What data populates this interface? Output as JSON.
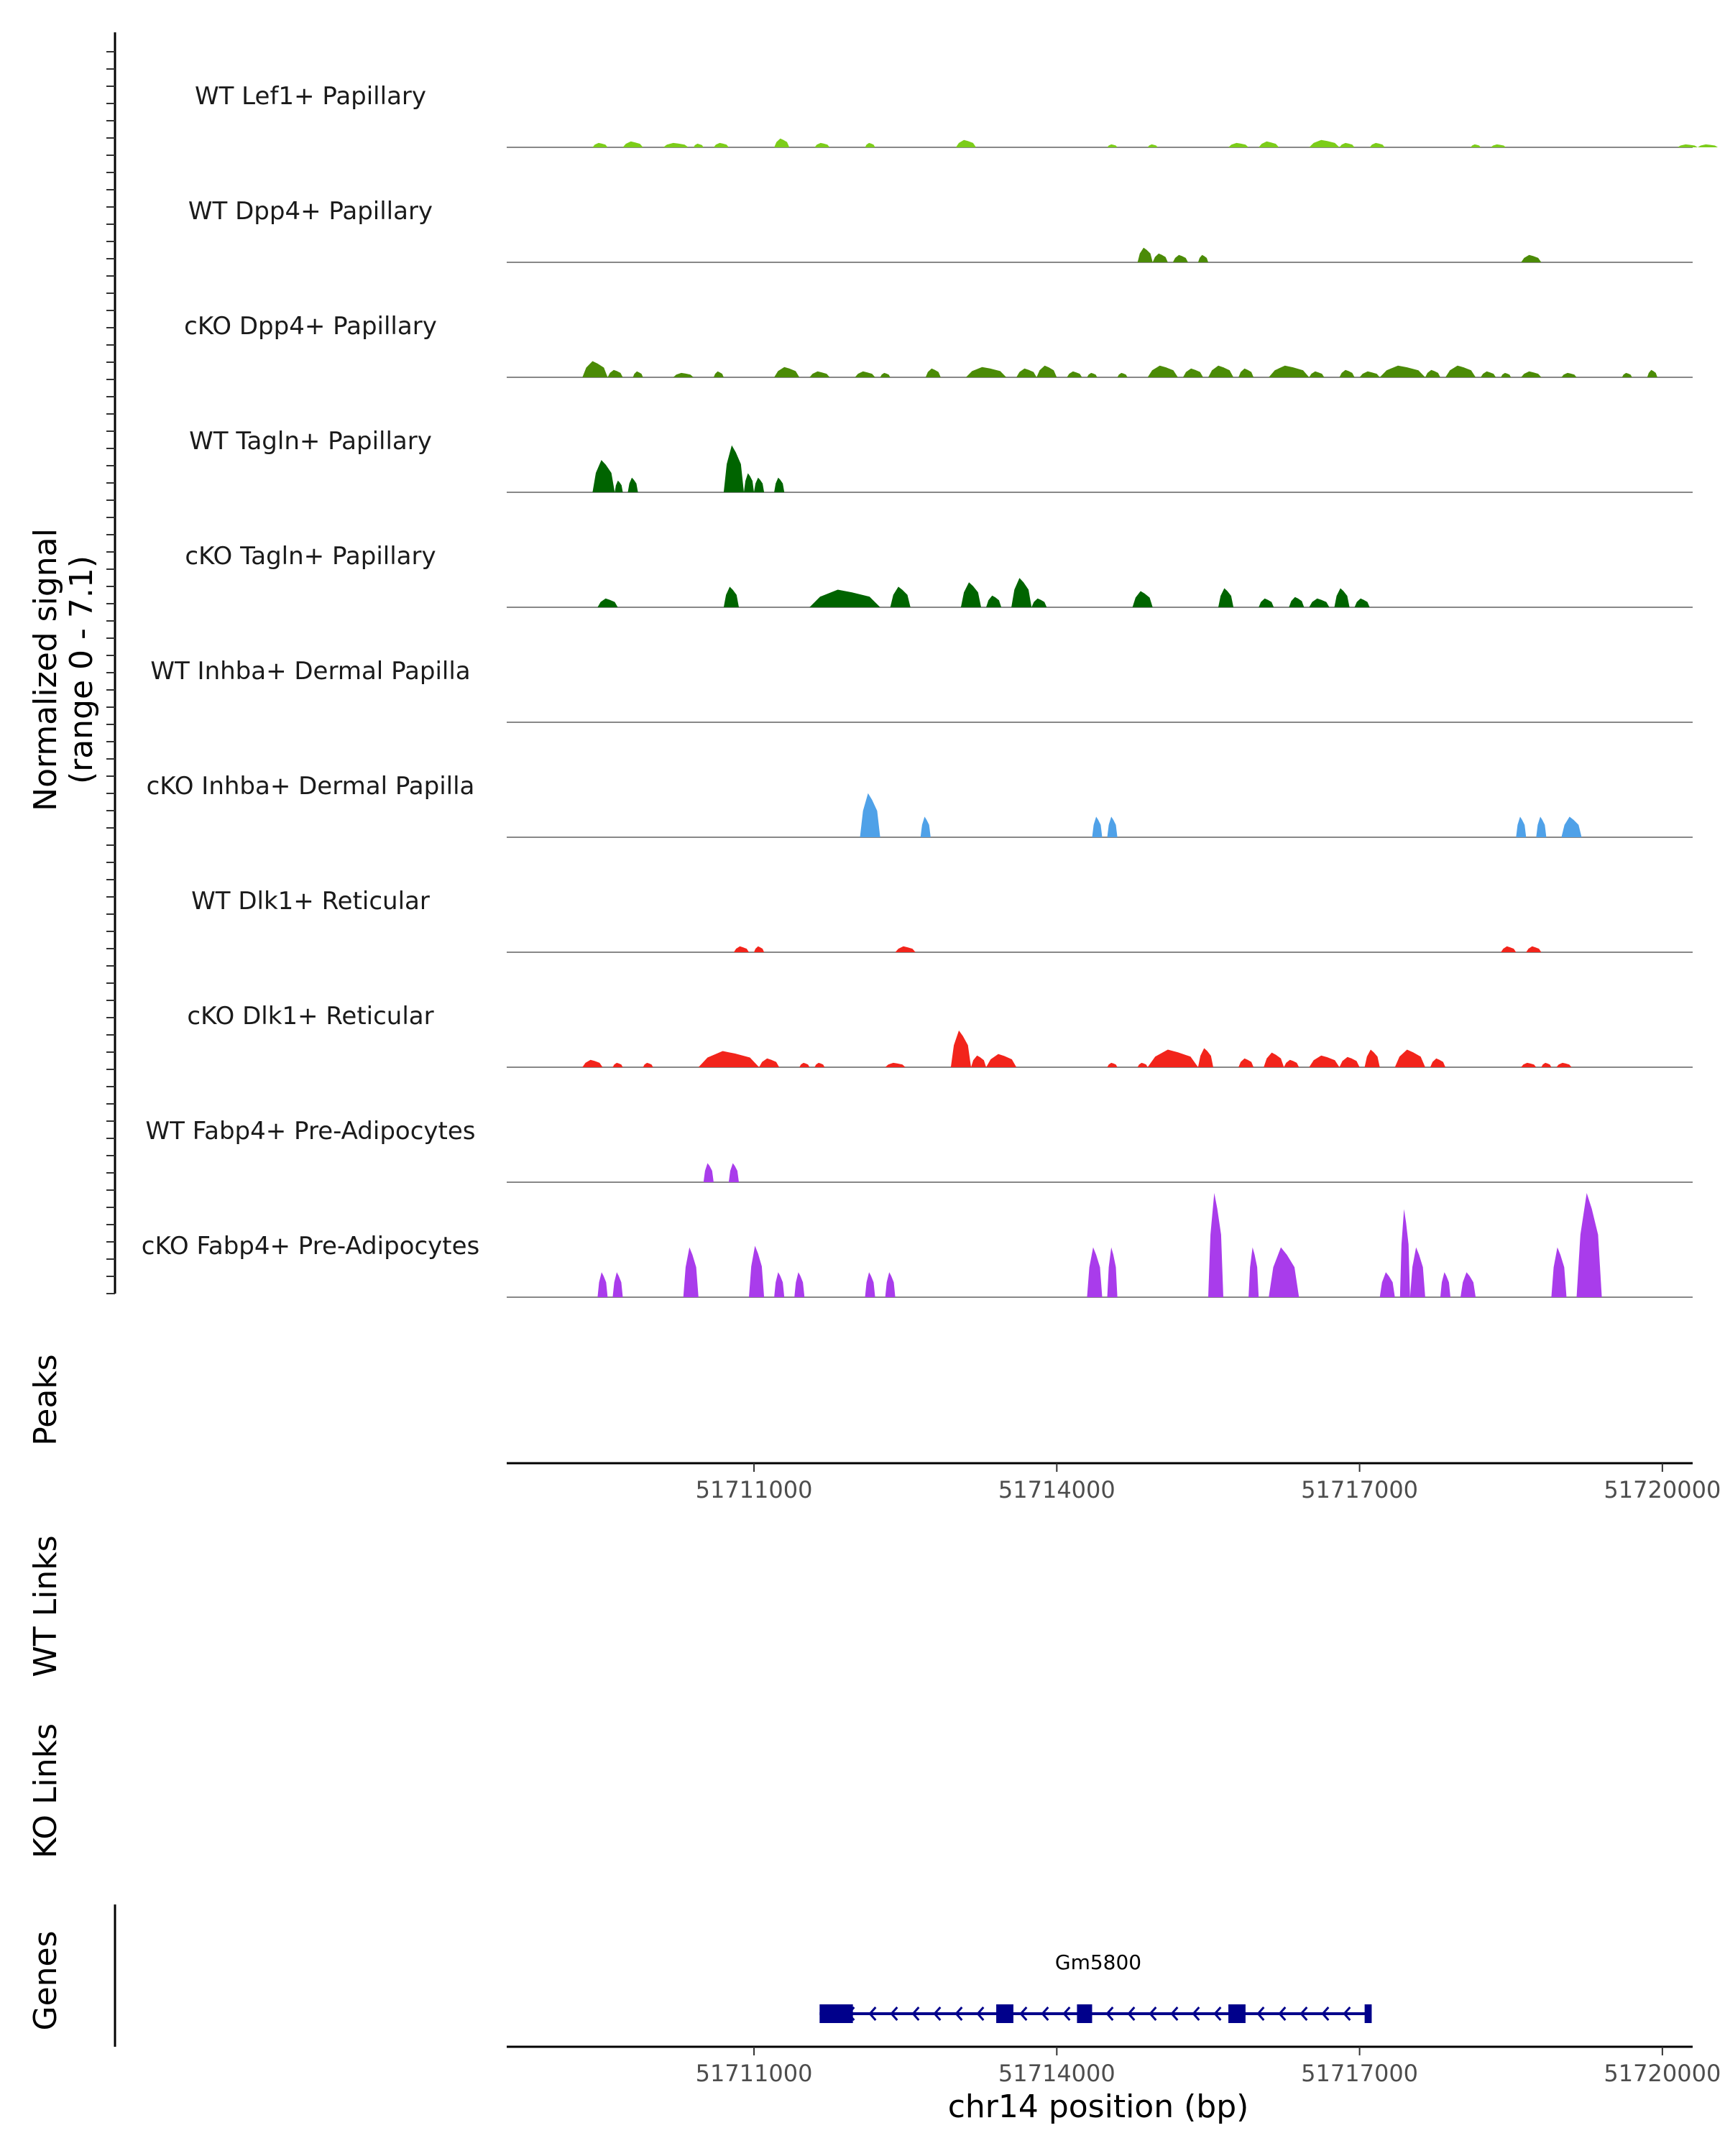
{
  "chart_data": {
    "type": "area",
    "title": "",
    "ylabel": "Normalized signal",
    "ylabel_range": "(range 0 - 7.1)",
    "y_range": [
      0,
      7.1
    ],
    "xlabel": "chr14 position (bp)",
    "xlim": [
      51708550,
      51720300
    ],
    "x_ticks": [
      51711000,
      51714000,
      51717000,
      51720000
    ],
    "x_tick_labels": [
      "51711000",
      "51714000",
      "51717000",
      "51720000"
    ],
    "peaks_label": "Peaks",
    "wt_links_label": "WT Links",
    "ko_links_label": "KO Links",
    "genes_label": "Genes",
    "tracks": [
      {
        "name": "WT Lef1+ Papillary",
        "color": "#7CCD1A",
        "peaks": [
          [
            51709400,
            51709550,
            0.3
          ],
          [
            51709700,
            51709900,
            0.4
          ],
          [
            51710100,
            51710350,
            0.3
          ],
          [
            51710400,
            51710500,
            0.25
          ],
          [
            51710600,
            51710750,
            0.3
          ],
          [
            51711200,
            51711350,
            0.6
          ],
          [
            51711600,
            51711750,
            0.3
          ],
          [
            51712100,
            51712200,
            0.3
          ],
          [
            51713000,
            51713200,
            0.5
          ],
          [
            51714500,
            51714600,
            0.2
          ],
          [
            51714900,
            51715000,
            0.2
          ],
          [
            51715700,
            51715900,
            0.3
          ],
          [
            51716000,
            51716200,
            0.4
          ],
          [
            51716500,
            51716800,
            0.5
          ],
          [
            51716800,
            51716950,
            0.3
          ],
          [
            51717100,
            51717250,
            0.3
          ],
          [
            51718100,
            51718200,
            0.2
          ],
          [
            51718300,
            51718450,
            0.2
          ],
          [
            51720150,
            51720350,
            0.2
          ],
          [
            51720350,
            51720550,
            0.2
          ]
        ]
      },
      {
        "name": "WT Dpp4+ Papillary",
        "color": "#4B8B07",
        "peaks": [
          [
            51714800,
            51714950,
            1.0
          ],
          [
            51714950,
            51715100,
            0.6
          ],
          [
            51715150,
            51715300,
            0.5
          ],
          [
            51715400,
            51715500,
            0.5
          ],
          [
            51718600,
            51718800,
            0.5
          ]
        ]
      },
      {
        "name": "cKO Dpp4+ Papillary",
        "color": "#4B8B07",
        "peaks": [
          [
            51709300,
            51709550,
            1.1
          ],
          [
            51709550,
            51709700,
            0.5
          ],
          [
            51709800,
            51709900,
            0.4
          ],
          [
            51710200,
            51710400,
            0.3
          ],
          [
            51710600,
            51710700,
            0.4
          ],
          [
            51711200,
            51711450,
            0.7
          ],
          [
            51711550,
            51711750,
            0.4
          ],
          [
            51712000,
            51712200,
            0.4
          ],
          [
            51712250,
            51712350,
            0.3
          ],
          [
            51712700,
            51712850,
            0.6
          ],
          [
            51713100,
            51713500,
            0.7
          ],
          [
            51713600,
            51713800,
            0.6
          ],
          [
            51713800,
            51714000,
            0.8
          ],
          [
            51714100,
            51714250,
            0.4
          ],
          [
            51714300,
            51714400,
            0.3
          ],
          [
            51714600,
            51714700,
            0.3
          ],
          [
            51714900,
            51715200,
            0.8
          ],
          [
            51715250,
            51715450,
            0.6
          ],
          [
            51715500,
            51715750,
            0.8
          ],
          [
            51715800,
            51715950,
            0.6
          ],
          [
            51716100,
            51716500,
            0.8
          ],
          [
            51716500,
            51716650,
            0.4
          ],
          [
            51716800,
            51716950,
            0.5
          ],
          [
            51717000,
            51717200,
            0.4
          ],
          [
            51717200,
            51717650,
            0.8
          ],
          [
            51717650,
            51717800,
            0.5
          ],
          [
            51717850,
            51718150,
            0.8
          ],
          [
            51718200,
            51718350,
            0.4
          ],
          [
            51718400,
            51718500,
            0.3
          ],
          [
            51718600,
            51718800,
            0.4
          ],
          [
            51719000,
            51719150,
            0.3
          ],
          [
            51719600,
            51719700,
            0.3
          ],
          [
            51719850,
            51719950,
            0.5
          ]
        ]
      },
      {
        "name": "WT Tagln+ Papillary",
        "color": "#006400",
        "peaks": [
          [
            51709400,
            51709620,
            2.2
          ],
          [
            51709620,
            51709700,
            0.8
          ],
          [
            51709750,
            51709850,
            1.0
          ],
          [
            51710700,
            51710900,
            3.2
          ],
          [
            51710900,
            51711000,
            1.3
          ],
          [
            51711000,
            51711100,
            1.0
          ],
          [
            51711200,
            51711300,
            1.0
          ]
        ]
      },
      {
        "name": "cKO Tagln+ Papillary",
        "color": "#006400",
        "peaks": [
          [
            51709450,
            51709650,
            0.6
          ],
          [
            51710700,
            51710850,
            1.4
          ],
          [
            51711550,
            51712250,
            1.2
          ],
          [
            51712350,
            51712550,
            1.4
          ],
          [
            51713050,
            51713250,
            1.7
          ],
          [
            51713300,
            51713450,
            0.8
          ],
          [
            51713550,
            51713750,
            2.0
          ],
          [
            51713750,
            51713900,
            0.6
          ],
          [
            51714750,
            51714950,
            1.1
          ],
          [
            51715600,
            51715750,
            1.3
          ],
          [
            51716000,
            51716150,
            0.6
          ],
          [
            51716300,
            51716450,
            0.7
          ],
          [
            51716500,
            51716700,
            0.6
          ],
          [
            51716750,
            51716900,
            1.3
          ],
          [
            51716950,
            51717100,
            0.6
          ]
        ]
      },
      {
        "name": "WT Inhba+ Dermal Papilla",
        "color": "#4FA1E8",
        "peaks": []
      },
      {
        "name": "cKO Inhba+ Dermal Papilla",
        "color": "#4FA1E8",
        "peaks": [
          [
            51712050,
            51712250,
            3.0
          ],
          [
            51712650,
            51712750,
            1.4
          ],
          [
            51714350,
            51714450,
            1.4
          ],
          [
            51714500,
            51714600,
            1.4
          ],
          [
            51718550,
            51718650,
            1.4
          ],
          [
            51718750,
            51718850,
            1.4
          ],
          [
            51719000,
            51719200,
            1.4
          ]
        ]
      },
      {
        "name": "WT Dlk1+ Reticular",
        "color": "#F2241B",
        "peaks": [
          [
            51710800,
            51710950,
            0.4
          ],
          [
            51711000,
            51711100,
            0.4
          ],
          [
            51712400,
            51712600,
            0.4
          ],
          [
            51718400,
            51718550,
            0.4
          ],
          [
            51718650,
            51718800,
            0.4
          ]
        ]
      },
      {
        "name": "cKO Dlk1+ Reticular",
        "color": "#F2241B",
        "peaks": [
          [
            51709300,
            51709500,
            0.5
          ],
          [
            51709600,
            51709700,
            0.3
          ],
          [
            51709900,
            51710000,
            0.3
          ],
          [
            51710450,
            51711050,
            1.1
          ],
          [
            51711050,
            51711250,
            0.6
          ],
          [
            51711450,
            51711550,
            0.3
          ],
          [
            51711600,
            51711700,
            0.3
          ],
          [
            51712300,
            51712500,
            0.3
          ],
          [
            51712950,
            51713150,
            2.5
          ],
          [
            51713150,
            51713300,
            0.8
          ],
          [
            51713300,
            51713600,
            0.9
          ],
          [
            51714500,
            51714600,
            0.3
          ],
          [
            51714800,
            51714900,
            0.3
          ],
          [
            51714900,
            51715400,
            1.2
          ],
          [
            51715400,
            51715550,
            1.3
          ],
          [
            51715800,
            51715950,
            0.6
          ],
          [
            51716050,
            51716250,
            1.0
          ],
          [
            51716250,
            51716400,
            0.5
          ],
          [
            51716500,
            51716800,
            0.8
          ],
          [
            51716800,
            51717000,
            0.7
          ],
          [
            51717050,
            51717200,
            1.2
          ],
          [
            51717350,
            51717650,
            1.2
          ],
          [
            51717700,
            51717850,
            0.6
          ],
          [
            51718600,
            51718750,
            0.3
          ],
          [
            51718800,
            51718900,
            0.3
          ],
          [
            51718950,
            51719100,
            0.3
          ]
        ]
      },
      {
        "name": "WT Fabp4+ Pre-Adipocytes",
        "color": "#A93CEB",
        "peaks": [
          [
            51710500,
            51710600,
            1.3
          ],
          [
            51710750,
            51710850,
            1.3
          ]
        ]
      },
      {
        "name": "cKO Fabp4+ Pre-Adipocytes",
        "color": "#A93CEB",
        "peaks": [
          [
            51709450,
            51709550,
            1.7
          ],
          [
            51709600,
            51709700,
            1.7
          ],
          [
            51710300,
            51710450,
            3.4
          ],
          [
            51710950,
            51711100,
            3.5
          ],
          [
            51711200,
            51711300,
            1.7
          ],
          [
            51711400,
            51711500,
            1.7
          ],
          [
            51712100,
            51712200,
            1.7
          ],
          [
            51712300,
            51712400,
            1.7
          ],
          [
            51714300,
            51714450,
            3.4
          ],
          [
            51714500,
            51714600,
            3.4
          ],
          [
            51715500,
            51715650,
            7.1
          ],
          [
            51715900,
            51716000,
            3.4
          ],
          [
            51716100,
            51716400,
            3.4
          ],
          [
            51717200,
            51717350,
            1.7
          ],
          [
            51717400,
            51717500,
            6.0
          ],
          [
            51717500,
            51717650,
            3.4
          ],
          [
            51717800,
            51717900,
            1.7
          ],
          [
            51718000,
            51718150,
            1.7
          ],
          [
            51718900,
            51719050,
            3.4
          ],
          [
            51719150,
            51719400,
            7.1
          ]
        ]
      }
    ],
    "gene": {
      "name": "Gm5800",
      "start": 51711650,
      "end": 51717100,
      "strand": "-",
      "exons": [
        [
          51711650,
          51711980
        ],
        [
          51713400,
          51713570
        ],
        [
          51714200,
          51714350
        ],
        [
          51715700,
          51715870
        ],
        [
          51717050,
          51717120
        ]
      ],
      "color": "#00008B"
    }
  }
}
